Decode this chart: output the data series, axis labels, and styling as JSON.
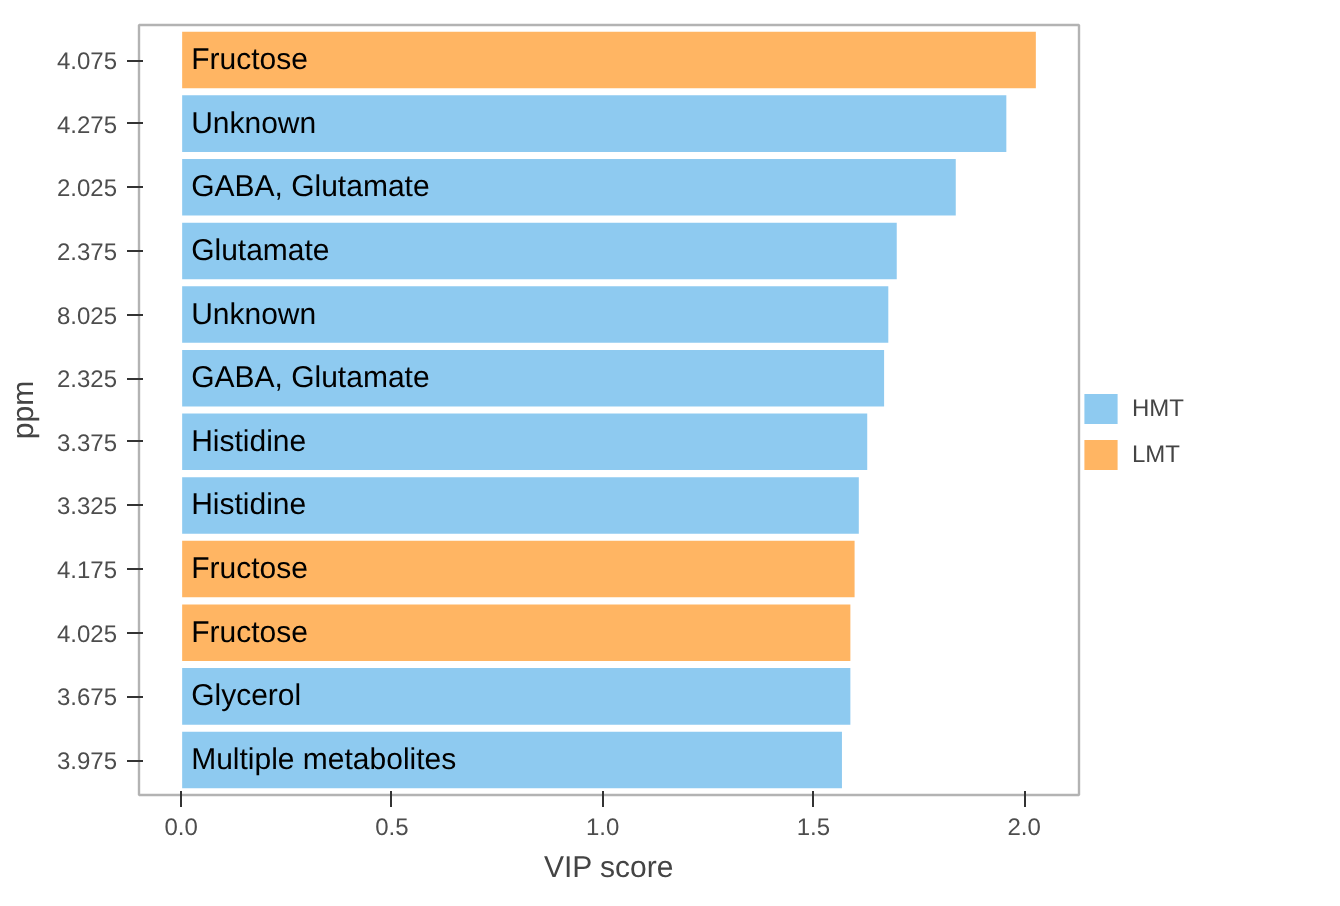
{
  "chart_data": {
    "type": "bar",
    "orientation": "horizontal",
    "xlabel": "VIP score",
    "ylabel": "ppm",
    "categories": [
      "4.075",
      "4.275",
      "2.025",
      "2.375",
      "8.025",
      "2.325",
      "3.375",
      "3.325",
      "4.175",
      "4.025",
      "3.675",
      "3.975"
    ],
    "series": [
      {
        "name": "HMT",
        "color": "#8ecaf0",
        "values": [
          null,
          1.96,
          1.84,
          1.7,
          1.68,
          1.67,
          1.63,
          1.61,
          null,
          null,
          1.59,
          1.57
        ]
      },
      {
        "name": "LMT",
        "color": "#ffb563",
        "values": [
          2.03,
          null,
          null,
          null,
          null,
          null,
          null,
          null,
          1.6,
          1.59,
          null,
          null
        ]
      }
    ],
    "xlim": [
      -0.1,
      2.13
    ],
    "xticks": [
      {
        "value": 0,
        "label": "0.0"
      },
      {
        "value": 0.5,
        "label": "0.5"
      },
      {
        "value": 1.0,
        "label": "1.0"
      },
      {
        "value": 1.5,
        "label": "1.5"
      },
      {
        "value": 2.0,
        "label": "2.0"
      }
    ],
    "annotations": [
      {
        "text": "Fructose",
        "y": "4.075"
      },
      {
        "text": "Unknown",
        "y": "4.275"
      },
      {
        "text": "GABA, Glutamate",
        "y": "2.025"
      },
      {
        "text": "Glutamate",
        "y": "2.375"
      },
      {
        "text": "Unknown",
        "y": "8.025"
      },
      {
        "text": "GABA, Glutamate",
        "y": "2.325"
      },
      {
        "text": "Histidine",
        "y": "3.375"
      },
      {
        "text": "Histidine",
        "y": "3.325"
      },
      {
        "text": "Fructose",
        "y": "4.175"
      },
      {
        "text": "Fructose",
        "y": "4.025"
      },
      {
        "text": "Glycerol",
        "y": "3.675"
      },
      {
        "text": "Multiple metabolites",
        "y": "3.975"
      }
    ],
    "grid": false,
    "legend": "right"
  }
}
